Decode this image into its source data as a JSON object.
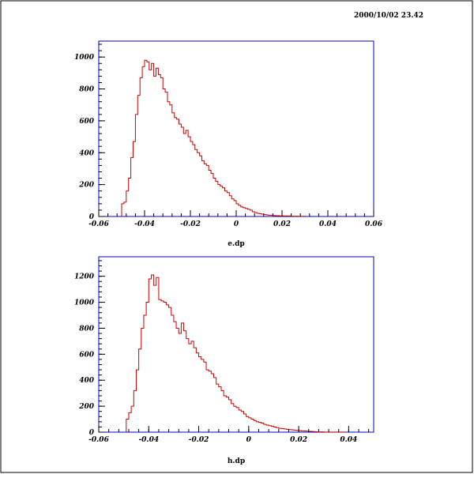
{
  "timestamp": "2000/10/02  23.42",
  "colors": {
    "frame": "#0000cc",
    "hist": "#cc0000",
    "border": "#000000"
  },
  "chart_data": [
    {
      "type": "histogram",
      "xlabel": "e.dp",
      "xlim": [
        -0.06,
        0.06
      ],
      "ylim": [
        0,
        1100
      ],
      "xticks": [
        -0.06,
        -0.04,
        -0.02,
        0,
        0.02,
        0.04,
        0.06
      ],
      "xtick_labels": [
        "-0.06",
        "-0.04",
        "-0.02",
        "0",
        "0.02",
        "0.04",
        "0.06"
      ],
      "yticks": [
        0,
        200,
        400,
        600,
        800,
        1000
      ],
      "ytick_labels": [
        "0",
        "200",
        "400",
        "600",
        "800",
        "1000"
      ],
      "bin_start": -0.05,
      "bin_width": 0.001,
      "values": [
        80,
        90,
        160,
        240,
        370,
        470,
        640,
        760,
        870,
        940,
        980,
        970,
        920,
        960,
        880,
        930,
        890,
        870,
        800,
        780,
        720,
        700,
        650,
        620,
        610,
        580,
        560,
        520,
        540,
        500,
        470,
        450,
        420,
        400,
        380,
        350,
        330,
        320,
        290,
        270,
        240,
        220,
        200,
        190,
        180,
        160,
        150,
        130,
        110,
        100,
        80,
        70,
        60,
        55,
        50,
        45,
        40,
        30,
        25,
        20,
        18,
        15,
        12,
        10,
        8,
        8,
        6,
        5,
        5,
        4,
        4,
        3,
        3,
        3,
        2,
        2,
        2,
        1,
        1,
        1
      ]
    },
    {
      "type": "histogram",
      "xlabel": "h.dp",
      "xlim": [
        -0.06,
        0.05
      ],
      "ylim": [
        0,
        1350
      ],
      "xticks": [
        -0.06,
        -0.04,
        -0.02,
        0,
        0.02,
        0.04
      ],
      "xtick_labels": [
        "-0.06",
        "-0.04",
        "-0.02",
        "0",
        "0.02",
        "0.04"
      ],
      "yticks": [
        0,
        200,
        400,
        600,
        800,
        1000,
        1200
      ],
      "ytick_labels": [
        "0",
        "200",
        "400",
        "600",
        "800",
        "1000",
        "1200"
      ],
      "bin_start": -0.049,
      "bin_width": 0.001,
      "values": [
        100,
        150,
        200,
        320,
        480,
        640,
        800,
        900,
        1000,
        1180,
        1210,
        1130,
        1190,
        1020,
        1010,
        1000,
        980,
        960,
        900,
        850,
        800,
        760,
        840,
        780,
        720,
        680,
        700,
        650,
        610,
        580,
        560,
        540,
        480,
        470,
        450,
        420,
        370,
        350,
        320,
        280,
        270,
        250,
        220,
        200,
        190,
        170,
        160,
        140,
        120,
        110,
        100,
        90,
        80,
        75,
        70,
        60,
        55,
        50,
        45,
        40,
        35,
        30,
        28,
        25,
        22,
        20,
        18,
        16,
        14,
        12,
        10,
        9,
        8,
        6,
        5,
        4,
        3,
        2,
        2,
        1,
        1,
        1,
        1,
        1,
        1,
        1,
        1,
        1
      ]
    }
  ]
}
